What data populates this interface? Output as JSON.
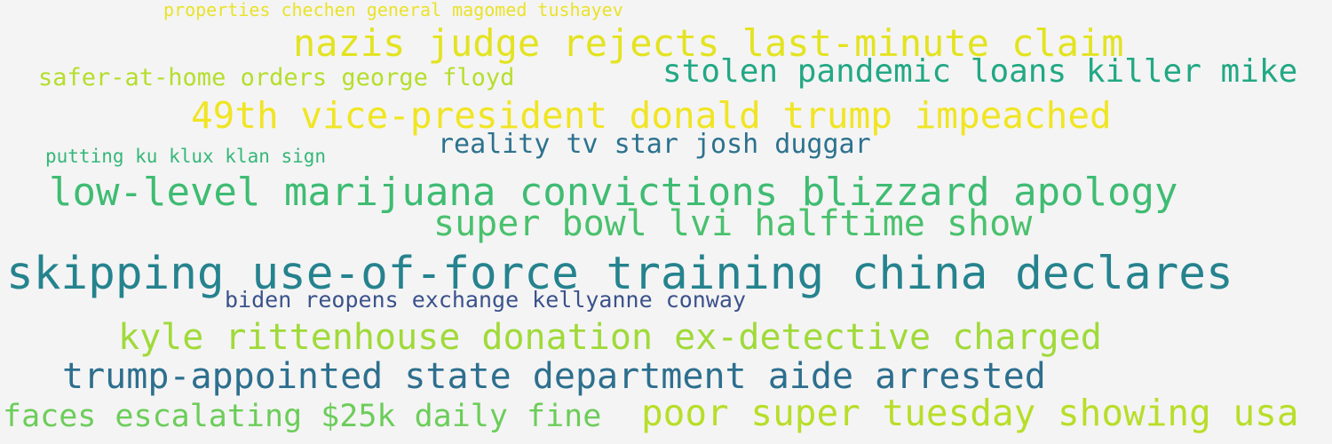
{
  "cloud": {
    "phrases": [
      {
        "text": "properties chechen general magomed tushayev",
        "color": "#e9e22a"
      },
      {
        "text": "nazis judge rejects last-minute claim",
        "color": "#e3e321"
      },
      {
        "text": "stolen pandemic loans killer mike",
        "color": "#22a884"
      },
      {
        "text": "safer-at-home orders george floyd",
        "color": "#b5de2b"
      },
      {
        "text": "49th vice-president donald trump impeached",
        "color": "#f0e523"
      },
      {
        "text": "reality tv star josh duggar",
        "color": "#2c728e"
      },
      {
        "text": "putting ku klux klan sign",
        "color": "#35b779"
      },
      {
        "text": "low-level marijuana convictions blizzard apology",
        "color": "#3fbc73"
      },
      {
        "text": "super bowl lvi halftime show",
        "color": "#4ac16d"
      },
      {
        "text": "skipping use-of-force training china declares",
        "color": "#25838e"
      },
      {
        "text": "biden reopens exchange kellyanne conway",
        "color": "#3b528b"
      },
      {
        "text": "kyle rittenhouse donation ex-detective charged",
        "color": "#a0da39"
      },
      {
        "text": "trump-appointed state department aide arrested",
        "color": "#2d6f8e"
      },
      {
        "text": "faces escalating $25k daily fine",
        "color": "#6ccd5a"
      },
      {
        "text": "poor super tuesday showing usa",
        "color": "#b8de29"
      }
    ]
  }
}
